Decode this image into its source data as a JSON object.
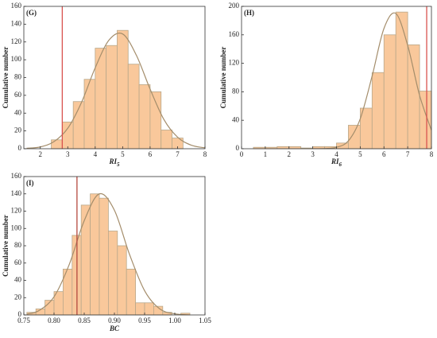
{
  "chart_data": [
    {
      "type": "histogram",
      "panel_label": "(G)",
      "ylabel": "Cumulative number",
      "xlabel": "RI",
      "xlabel_sub": "5",
      "bins": [
        2.4,
        2.8,
        3.2,
        3.6,
        4.0,
        4.4,
        4.8,
        5.2,
        5.6,
        6.0,
        6.4,
        6.8,
        7.2
      ],
      "values": [
        10,
        30,
        53,
        78,
        113,
        116,
        133,
        95,
        72,
        64,
        21,
        12
      ],
      "color": "#f9c89b",
      "edge_color": "#b9a88a",
      "fit_curve": {
        "x": [
          1.5,
          2,
          2.5,
          3,
          3.5,
          4,
          4.5,
          5,
          5.5,
          6,
          6.5,
          7,
          7.5,
          8
        ],
        "y": [
          0.5,
          2,
          8,
          23,
          52,
          91,
          122,
          129,
          105,
          67,
          33,
          13,
          4,
          1
        ],
        "color": "#a48d6b"
      },
      "vline": 2.8,
      "vline_color": "#d9534f",
      "xlim": [
        1.4,
        8
      ],
      "xticks": [
        2,
        3,
        4,
        5,
        6,
        7,
        8
      ],
      "ylim": [
        0,
        160
      ],
      "yticks": [
        0,
        20,
        40,
        60,
        80,
        100,
        120,
        140,
        160
      ]
    },
    {
      "type": "histogram",
      "panel_label": "(H)",
      "ylabel": "Cumulative number",
      "xlabel": "RI",
      "xlabel_sub": "6",
      "bins": [
        0.5,
        1.0,
        1.5,
        2.0,
        2.5,
        3.0,
        3.5,
        4.0,
        4.5,
        5.0,
        5.5,
        6.0,
        6.5,
        7.0,
        7.5,
        8.0
      ],
      "values": [
        2,
        2,
        3,
        3,
        1,
        3,
        3,
        8,
        33,
        57,
        107,
        160,
        192,
        146,
        81
      ],
      "color": "#f9c89b",
      "edge_color": "#b9a88a",
      "fit_curve": {
        "x": [
          3,
          3.5,
          4,
          4.5,
          5,
          5.5,
          6,
          6.5,
          7,
          7.5,
          8
        ],
        "y": [
          0,
          0.3,
          2,
          11,
          42,
          102,
          169,
          190,
          145,
          75,
          26
        ],
        "color": "#a48d6b"
      },
      "vline": 7.8,
      "vline_color": "#d9534f",
      "xlim": [
        0,
        8
      ],
      "xticks": [
        0,
        1,
        2,
        3,
        4,
        5,
        6,
        7,
        8
      ],
      "ylim": [
        0,
        200
      ],
      "yticks": [
        0,
        40,
        80,
        120,
        160,
        200
      ]
    },
    {
      "type": "histogram",
      "panel_label": "(I)",
      "ylabel": "Cumulative number",
      "xlabel": "BC",
      "xlabel_sub": "",
      "bins": [
        0.755,
        0.77,
        0.785,
        0.8,
        0.815,
        0.83,
        0.845,
        0.86,
        0.875,
        0.89,
        0.905,
        0.92,
        0.935,
        0.95,
        0.965,
        0.98,
        0.995,
        1.01,
        1.025
      ],
      "values": [
        3,
        7,
        17,
        27,
        53,
        92,
        127,
        140,
        135,
        97,
        80,
        53,
        14,
        14,
        10,
        3,
        0,
        2
      ],
      "color": "#f9c89b",
      "edge_color": "#b9a88a",
      "fit_curve": {
        "x": [
          0.755,
          0.775,
          0.8,
          0.825,
          0.85,
          0.875,
          0.9,
          0.925,
          0.95,
          0.975,
          1.0,
          1.025
        ],
        "y": [
          1,
          5,
          21,
          58,
          109,
          140,
          121,
          70,
          28,
          7,
          1.3,
          0
        ],
        "color": "#a48d6b"
      },
      "vline": 0.838,
      "vline_color": "#b5483f",
      "xlim": [
        0.75,
        1.05
      ],
      "xticks": [
        0.75,
        {
          "value": 0.8,
          "label": "0.80"
        },
        0.85,
        {
          "value": 0.9,
          "label": "0.90"
        },
        0.95,
        {
          "value": 1.0,
          "label": "1.00"
        },
        1.05
      ],
      "ylim": [
        0,
        160
      ],
      "yticks": [
        0,
        20,
        40,
        60,
        80,
        100,
        120,
        140,
        160
      ]
    }
  ]
}
